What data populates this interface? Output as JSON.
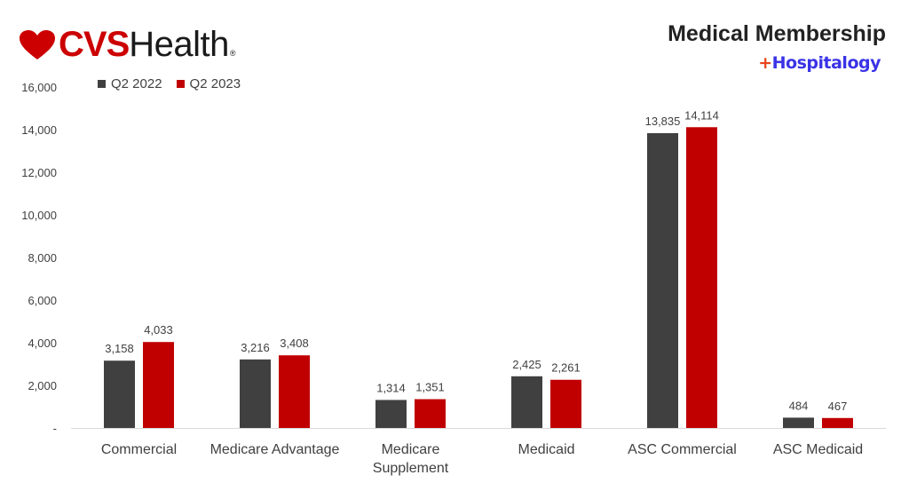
{
  "brand": {
    "logo_mark": "CVS",
    "logo_word": "Health",
    "logo_reg": "®"
  },
  "header": {
    "title": "Medical Membership",
    "sublogo_plus": "+",
    "sublogo_text": "Hospitalogy"
  },
  "colors": {
    "q2_2022": "#404040",
    "q2_2023": "#c00000",
    "axis": "#d9d9d9",
    "text": "#404040"
  },
  "chart_data": {
    "type": "bar",
    "title": "Medical Membership",
    "categories": [
      "Commercial",
      "Medicare Advantage",
      "Medicare Supplement",
      "Medicaid",
      "ASC Commercial",
      "ASC Medicaid"
    ],
    "category_lines": [
      [
        "Commercial"
      ],
      [
        "Medicare Advantage"
      ],
      [
        "Medicare",
        "Supplement"
      ],
      [
        "Medicaid"
      ],
      [
        "ASC Commercial"
      ],
      [
        "ASC Medicaid"
      ]
    ],
    "series": [
      {
        "name": "Q2 2022",
        "values": [
          3158,
          3216,
          1314,
          2425,
          13835,
          484
        ],
        "labels": [
          "3,158",
          "3,216",
          "1,314",
          "2,425",
          "13,835",
          "484"
        ]
      },
      {
        "name": "Q2 2023",
        "values": [
          4033,
          3408,
          1351,
          2261,
          14114,
          467
        ],
        "labels": [
          "4,033",
          "3,408",
          "1,351",
          "2,261",
          "14,114",
          "467"
        ]
      }
    ],
    "ylim": [
      0,
      16000
    ],
    "yticks": [
      0,
      2000,
      4000,
      6000,
      8000,
      10000,
      12000,
      14000,
      16000
    ],
    "ytick_labels": [
      "-",
      "2,000",
      "4,000",
      "6,000",
      "8,000",
      "10,000",
      "12,000",
      "14,000",
      "16,000"
    ],
    "grid": false,
    "legend": "top-left"
  }
}
